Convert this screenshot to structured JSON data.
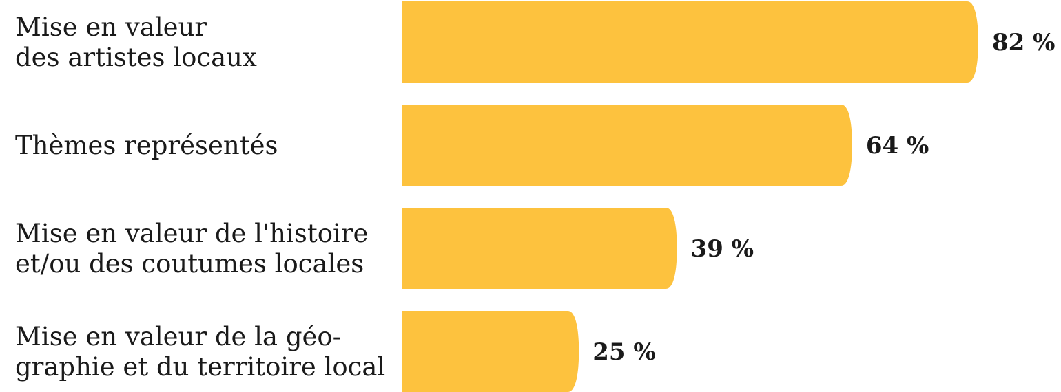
{
  "chart_data": {
    "type": "bar",
    "orientation": "horizontal",
    "categories": [
      [
        "Mise en valeur",
        "des artistes locaux"
      ],
      [
        "Thèmes représentés"
      ],
      [
        "Mise en valeur de l'histoire",
        "et/ou des coutumes locales"
      ],
      [
        "Mise en valeur de la géo-",
        "graphie et du territoire local"
      ]
    ],
    "values": [
      82,
      64,
      39,
      25
    ],
    "value_labels": [
      "82 %",
      "64 %",
      "39 %",
      "25 %"
    ],
    "unit": "%",
    "bar_color": "#FDC23E",
    "text_color": "#1a1a1a",
    "title": "",
    "xlabel": "",
    "ylabel": "",
    "xlim": [
      0,
      100
    ],
    "grid": false,
    "legend": "none"
  }
}
